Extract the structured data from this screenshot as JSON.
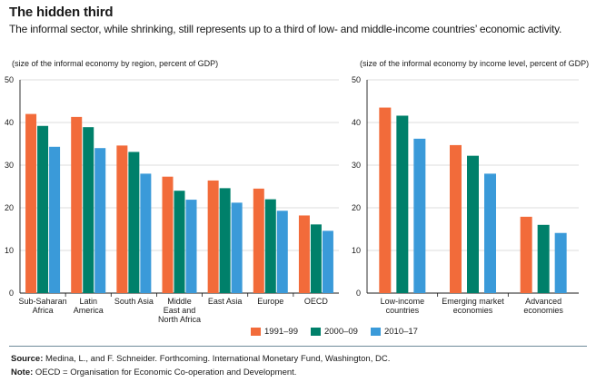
{
  "title": "The hidden third",
  "subtitle": "The informal sector, while shrinking, still represents up to a third of low- and middle-income countries’ economic activity.",
  "legend": [
    {
      "label": "1991–99",
      "color": "#f26b3a"
    },
    {
      "label": "2000–09",
      "color": "#00806a"
    },
    {
      "label": "2010–17",
      "color": "#3a9ad9"
    }
  ],
  "source_label": "Source:",
  "source_text": "Medina, L., and F. Schneider. Forthcoming. International Monetary Fund, Washington, DC.",
  "note_label": "Note:",
  "note_text": "OECD = Organisation for Economic Co-operation and Development.",
  "chart_data": [
    {
      "type": "bar",
      "ylabel": "(size of the informal economy by region, percent of GDP)",
      "ylim": [
        0,
        50
      ],
      "yticks": [
        0,
        10,
        20,
        30,
        40,
        50
      ],
      "grid": true,
      "categories": [
        [
          "Sub-Saharan",
          "Africa"
        ],
        [
          "Latin",
          "America"
        ],
        [
          "South Asia"
        ],
        [
          "Middle",
          "East and",
          "North Africa"
        ],
        [
          "East Asia"
        ],
        [
          "Europe"
        ],
        [
          "OECD"
        ]
      ],
      "series": [
        {
          "name": "1991–99",
          "values": [
            42.0,
            41.3,
            34.6,
            27.3,
            26.4,
            24.5,
            18.2
          ]
        },
        {
          "name": "2000–09",
          "values": [
            39.2,
            38.9,
            33.1,
            24.0,
            24.6,
            22.0,
            16.1
          ]
        },
        {
          "name": "2010–17",
          "values": [
            34.3,
            34.0,
            28.0,
            21.9,
            21.2,
            19.3,
            14.6
          ]
        }
      ]
    },
    {
      "type": "bar",
      "ylabel": "(size of the informal economy by income level, percent of GDP)",
      "ylim": [
        0,
        50
      ],
      "yticks": [
        0,
        10,
        20,
        30,
        40,
        50
      ],
      "grid": true,
      "categories": [
        [
          "Low-income",
          "countries"
        ],
        [
          "Emerging market",
          "economies"
        ],
        [
          "Advanced",
          "economies"
        ]
      ],
      "series": [
        {
          "name": "1991–99",
          "values": [
            43.5,
            34.7,
            17.9
          ]
        },
        {
          "name": "2000–09",
          "values": [
            41.6,
            32.2,
            16.0
          ]
        },
        {
          "name": "2010–17",
          "values": [
            36.2,
            28.0,
            14.1
          ]
        }
      ]
    }
  ]
}
